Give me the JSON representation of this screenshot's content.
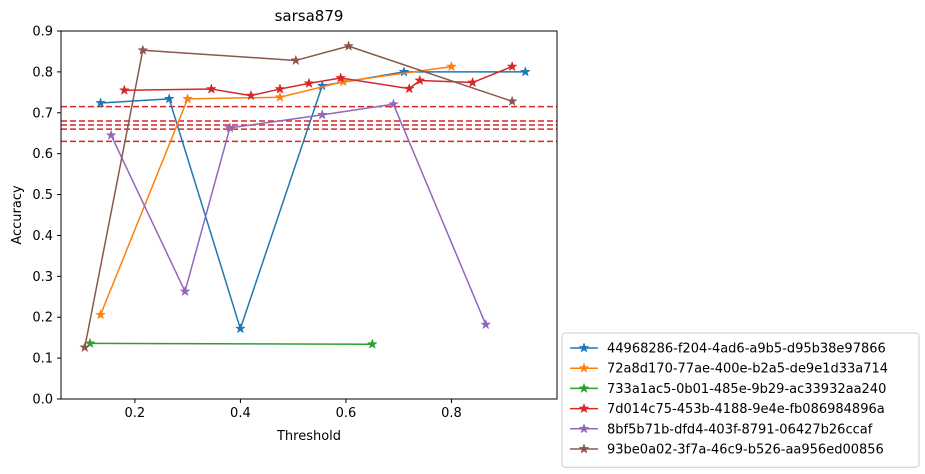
{
  "chart_data": {
    "type": "line",
    "title": "sarsa879",
    "xlabel": "Threshold",
    "ylabel": "Accuracy",
    "xlim": [
      0.06,
      1.0
    ],
    "ylim": [
      0.0,
      0.9
    ],
    "xticks": [
      "0.2",
      "0.4",
      "0.6",
      "0.8"
    ],
    "xtick_values": [
      0.2,
      0.4,
      0.6,
      0.8
    ],
    "yticks": [
      "0.0",
      "0.1",
      "0.2",
      "0.3",
      "0.4",
      "0.5",
      "0.6",
      "0.7",
      "0.8",
      "0.9"
    ],
    "ytick_values": [
      0.0,
      0.1,
      0.2,
      0.3,
      0.4,
      0.5,
      0.6,
      0.7,
      0.8,
      0.9
    ],
    "grid": false,
    "legend_position": "outside lower-right",
    "marker": "star",
    "hlines": {
      "color": "#d62728",
      "style": "dashed",
      "values": [
        0.715,
        0.68,
        0.67,
        0.66,
        0.63
      ]
    },
    "series": [
      {
        "name": "44968286-f204-4ad6-a9b5-d95b38e97866",
        "color": "#1f77b4",
        "x": [
          0.135,
          0.265,
          0.4,
          0.555,
          0.71,
          0.94
        ],
        "y": [
          0.724,
          0.734,
          0.172,
          0.766,
          0.8,
          0.8
        ]
      },
      {
        "name": "72a8d170-77ae-400e-b2a5-de9e1d33a714",
        "color": "#ff7f0e",
        "x": [
          0.135,
          0.3,
          0.475,
          0.595,
          0.8
        ],
        "y": [
          0.206,
          0.734,
          0.738,
          0.776,
          0.813
        ]
      },
      {
        "name": "733a1ac5-0b01-485e-9b29-ac33932aa240",
        "color": "#2ca02c",
        "x": [
          0.115,
          0.65
        ],
        "y": [
          0.136,
          0.134
        ]
      },
      {
        "name": "7d014c75-453b-4188-9e4e-fb086984896a",
        "color": "#d62728",
        "x": [
          0.18,
          0.345,
          0.42,
          0.475,
          0.53,
          0.59,
          0.72,
          0.74,
          0.84,
          0.915
        ],
        "y": [
          0.755,
          0.758,
          0.742,
          0.758,
          0.772,
          0.785,
          0.759,
          0.779,
          0.774,
          0.813
        ]
      },
      {
        "name": "8bf5b71b-dfd4-403f-8791-06427b26ccaf",
        "color": "#9467bd",
        "x": [
          0.155,
          0.295,
          0.38,
          0.555,
          0.69,
          0.865
        ],
        "y": [
          0.645,
          0.263,
          0.663,
          0.695,
          0.721,
          0.182
        ]
      },
      {
        "name": "93be0a02-3f7a-46c9-b526-aa956ed00856",
        "color": "#8c564b",
        "x": [
          0.105,
          0.215,
          0.505,
          0.605,
          0.915
        ],
        "y": [
          0.126,
          0.853,
          0.828,
          0.863,
          0.728
        ]
      }
    ]
  }
}
